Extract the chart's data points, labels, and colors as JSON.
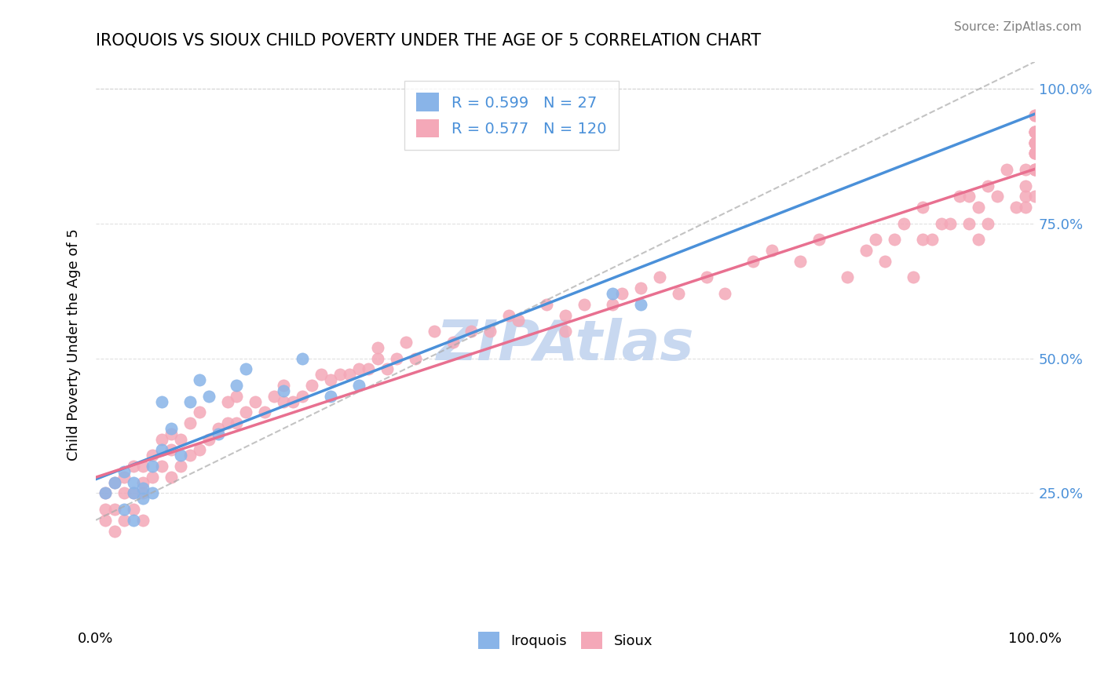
{
  "title": "IROQUOIS VS SIOUX CHILD POVERTY UNDER THE AGE OF 5 CORRELATION CHART",
  "source_text": "Source: ZipAtlas.com",
  "xlabel": "",
  "ylabel": "Child Poverty Under the Age of 5",
  "xlim": [
    0.0,
    1.0
  ],
  "ylim": [
    0.0,
    1.05
  ],
  "xticks": [
    0.0,
    1.0
  ],
  "xtick_labels": [
    "0.0%",
    "100.0%"
  ],
  "yticks": [
    0.25,
    0.5,
    0.75,
    1.0
  ],
  "ytick_labels": [
    "25.0%",
    "50.0%",
    "75.0%",
    "100.0%"
  ],
  "iroquois_color": "#89B4E8",
  "sioux_color": "#F4A8B8",
  "iroquois_R": 0.599,
  "iroquois_N": 27,
  "sioux_R": 0.577,
  "sioux_N": 120,
  "legend_label_iroquois": "Iroquois",
  "legend_label_sioux": "Sioux",
  "watermark": "ZIPAtlas",
  "watermark_color": "#C8D8F0",
  "iroquois_x": [
    0.01,
    0.02,
    0.03,
    0.03,
    0.04,
    0.04,
    0.04,
    0.05,
    0.05,
    0.06,
    0.06,
    0.07,
    0.07,
    0.08,
    0.09,
    0.1,
    0.11,
    0.12,
    0.13,
    0.15,
    0.16,
    0.2,
    0.22,
    0.25,
    0.28,
    0.55,
    0.58
  ],
  "iroquois_y": [
    0.25,
    0.27,
    0.22,
    0.29,
    0.2,
    0.25,
    0.27,
    0.24,
    0.26,
    0.25,
    0.3,
    0.33,
    0.42,
    0.37,
    0.32,
    0.42,
    0.46,
    0.43,
    0.36,
    0.45,
    0.48,
    0.44,
    0.5,
    0.43,
    0.45,
    0.62,
    0.6
  ],
  "sioux_x": [
    0.01,
    0.01,
    0.01,
    0.02,
    0.02,
    0.02,
    0.03,
    0.03,
    0.03,
    0.04,
    0.04,
    0.04,
    0.05,
    0.05,
    0.05,
    0.05,
    0.06,
    0.06,
    0.07,
    0.07,
    0.08,
    0.08,
    0.08,
    0.09,
    0.09,
    0.1,
    0.1,
    0.11,
    0.11,
    0.12,
    0.13,
    0.14,
    0.14,
    0.15,
    0.15,
    0.16,
    0.17,
    0.18,
    0.19,
    0.2,
    0.2,
    0.21,
    0.22,
    0.23,
    0.24,
    0.25,
    0.26,
    0.27,
    0.28,
    0.29,
    0.3,
    0.3,
    0.31,
    0.32,
    0.33,
    0.34,
    0.36,
    0.38,
    0.4,
    0.42,
    0.44,
    0.45,
    0.48,
    0.5,
    0.5,
    0.52,
    0.55,
    0.56,
    0.58,
    0.6,
    0.62,
    0.65,
    0.67,
    0.7,
    0.72,
    0.75,
    0.77,
    0.8,
    0.82,
    0.83,
    0.84,
    0.85,
    0.86,
    0.87,
    0.88,
    0.88,
    0.89,
    0.9,
    0.91,
    0.92,
    0.93,
    0.93,
    0.94,
    0.94,
    0.95,
    0.95,
    0.96,
    0.97,
    0.98,
    0.99,
    0.99,
    0.99,
    0.99,
    1.0,
    1.0,
    1.0,
    1.0,
    1.0,
    1.0,
    1.0,
    1.0,
    1.0,
    1.0,
    1.0,
    1.0,
    1.0,
    1.0,
    1.0,
    1.0,
    1.0
  ],
  "sioux_y": [
    0.2,
    0.22,
    0.25,
    0.18,
    0.22,
    0.27,
    0.2,
    0.25,
    0.28,
    0.22,
    0.25,
    0.3,
    0.2,
    0.25,
    0.27,
    0.3,
    0.28,
    0.32,
    0.3,
    0.35,
    0.28,
    0.33,
    0.36,
    0.3,
    0.35,
    0.32,
    0.38,
    0.33,
    0.4,
    0.35,
    0.37,
    0.38,
    0.42,
    0.38,
    0.43,
    0.4,
    0.42,
    0.4,
    0.43,
    0.42,
    0.45,
    0.42,
    0.43,
    0.45,
    0.47,
    0.46,
    0.47,
    0.47,
    0.48,
    0.48,
    0.5,
    0.52,
    0.48,
    0.5,
    0.53,
    0.5,
    0.55,
    0.53,
    0.55,
    0.55,
    0.58,
    0.57,
    0.6,
    0.55,
    0.58,
    0.6,
    0.6,
    0.62,
    0.63,
    0.65,
    0.62,
    0.65,
    0.62,
    0.68,
    0.7,
    0.68,
    0.72,
    0.65,
    0.7,
    0.72,
    0.68,
    0.72,
    0.75,
    0.65,
    0.72,
    0.78,
    0.72,
    0.75,
    0.75,
    0.8,
    0.75,
    0.8,
    0.72,
    0.78,
    0.75,
    0.82,
    0.8,
    0.85,
    0.78,
    0.8,
    0.78,
    0.85,
    0.82,
    0.8,
    0.85,
    0.9,
    0.92,
    0.85,
    0.88,
    0.92,
    0.95,
    0.85,
    0.88,
    0.9,
    0.92,
    0.88,
    0.9,
    0.92,
    0.95,
    0.9
  ]
}
